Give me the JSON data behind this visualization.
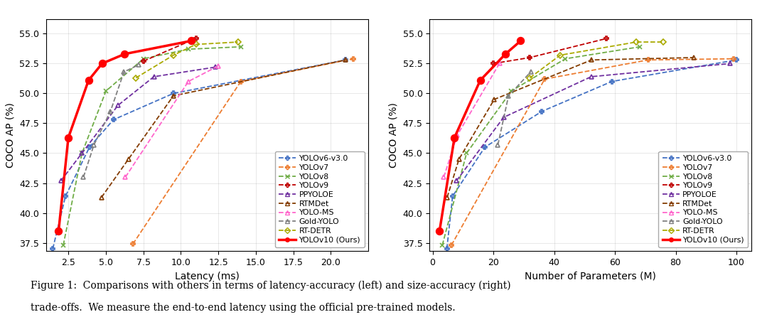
{
  "left_plot": {
    "xlabel": "Latency (ms)",
    "ylabel": "COCO AP (%)",
    "xlim": [
      1.0,
      22.5
    ],
    "ylim": [
      36.8,
      56.2
    ],
    "xticks": [
      2.5,
      5.0,
      7.5,
      10.0,
      12.5,
      15.0,
      17.5,
      20.0
    ],
    "yticks": [
      37.5,
      40.0,
      42.5,
      45.0,
      47.5,
      50.0,
      52.5,
      55.0
    ]
  },
  "right_plot": {
    "xlabel": "Number of Parameters (M)",
    "ylabel": "COCO AP (%)",
    "xlim": [
      -1.0,
      105.0
    ],
    "ylim": [
      36.8,
      56.2
    ],
    "xticks": [
      0,
      20,
      40,
      60,
      80,
      100
    ],
    "yticks": [
      37.5,
      40.0,
      42.5,
      45.0,
      47.5,
      50.0,
      52.5,
      55.0
    ]
  },
  "series": {
    "YOLOv6-v3.0": {
      "color": "#4472C4",
      "linestyle": "--",
      "marker": "P",
      "markersize": 5,
      "linewidth": 1.3,
      "left": {
        "x": [
          1.45,
          2.3,
          3.9,
          5.5,
          9.5,
          21.0
        ],
        "y": [
          37.0,
          41.4,
          45.5,
          47.8,
          50.0,
          52.8
        ]
      },
      "right": {
        "x": [
          4.7,
          6.6,
          17.2,
          36.0,
          59.0,
          100.0
        ],
        "y": [
          37.0,
          41.4,
          45.5,
          48.5,
          51.0,
          52.8
        ]
      }
    },
    "YOLOv7": {
      "color": "#ED7D31",
      "linestyle": "--",
      "marker": "P",
      "markersize": 5,
      "linewidth": 1.3,
      "left": {
        "x": [
          6.8,
          14.0,
          21.5
        ],
        "y": [
          37.4,
          51.0,
          52.9
        ]
      },
      "right": {
        "x": [
          6.2,
          36.9,
          70.9,
          99.0
        ],
        "y": [
          37.3,
          51.2,
          52.8,
          52.9
        ]
      }
    },
    "YOLOv8": {
      "color": "#70AD47",
      "linestyle": "--",
      "marker": "x",
      "markersize": 5,
      "linewidth": 1.3,
      "left": {
        "x": [
          2.15,
          3.4,
          5.0,
          7.5,
          10.5,
          14.0
        ],
        "y": [
          37.3,
          45.0,
          50.2,
          52.9,
          53.7,
          53.9
        ]
      },
      "right": {
        "x": [
          3.2,
          11.2,
          25.9,
          43.7,
          68.2
        ],
        "y": [
          37.3,
          45.0,
          50.2,
          52.9,
          53.9
        ]
      }
    },
    "YOLOv9": {
      "color": "#C00000",
      "linestyle": "--",
      "marker": "P",
      "markersize": 5,
      "linewidth": 1.3,
      "left": {
        "x": [
          7.5,
          11.0
        ],
        "y": [
          52.7,
          54.6
        ]
      },
      "right": {
        "x": [
          20.0,
          32.0,
          57.3
        ],
        "y": [
          52.5,
          53.0,
          54.6
        ]
      }
    },
    "PPYOLOE": {
      "color": "#7030A0",
      "linestyle": "--",
      "marker": "^",
      "markersize": 5,
      "linewidth": 1.3,
      "left": {
        "x": [
          2.0,
          3.4,
          5.8,
          8.2,
          12.3
        ],
        "y": [
          42.7,
          45.0,
          49.0,
          51.4,
          52.2
        ]
      },
      "right": {
        "x": [
          7.9,
          23.4,
          52.2,
          98.0
        ],
        "y": [
          42.7,
          48.0,
          51.4,
          52.5
        ]
      }
    },
    "RTMDet": {
      "color": "#843C00",
      "linestyle": "--",
      "marker": "^",
      "markersize": 5,
      "linewidth": 1.3,
      "left": {
        "x": [
          4.7,
          6.5,
          9.5,
          21.0
        ],
        "y": [
          41.3,
          44.5,
          49.8,
          52.8
        ]
      },
      "right": {
        "x": [
          4.8,
          8.7,
          20.3,
          52.3,
          86.0
        ],
        "y": [
          41.3,
          44.5,
          49.5,
          52.8,
          53.0
        ]
      }
    },
    "YOLO-MS": {
      "color": "#FF66CC",
      "linestyle": "--",
      "marker": "^",
      "markersize": 5,
      "linewidth": 1.3,
      "left": {
        "x": [
          6.3,
          10.5,
          12.5
        ],
        "y": [
          43.0,
          51.0,
          52.3
        ]
      },
      "right": {
        "x": [
          3.7,
          8.1,
          22.0
        ],
        "y": [
          43.0,
          46.5,
          52.5
        ]
      }
    },
    "Gold-YOLO": {
      "color": "#808080",
      "linestyle": "--",
      "marker": "^",
      "markersize": 5,
      "linewidth": 1.3,
      "left": {
        "x": [
          3.5,
          4.2,
          5.3,
          6.2,
          7.2
        ],
        "y": [
          43.0,
          45.7,
          48.5,
          51.8,
          52.4
        ]
      },
      "right": {
        "x": [
          21.5,
          25.0,
          32.3
        ],
        "y": [
          45.7,
          49.8,
          51.8
        ]
      }
    },
    "RT-DETR": {
      "color": "#AAAA00",
      "linestyle": "--",
      "marker": "D",
      "markersize": 4,
      "linewidth": 1.3,
      "left": {
        "x": [
          7.0,
          9.5,
          11.0,
          13.8
        ],
        "y": [
          51.3,
          53.2,
          54.1,
          54.3
        ]
      },
      "right": {
        "x": [
          32.0,
          42.0,
          67.0,
          76.0
        ],
        "y": [
          51.3,
          53.2,
          54.3,
          54.3
        ]
      }
    },
    "YOLOv10 (Ours)": {
      "color": "#FF0000",
      "linestyle": "-",
      "marker": "o",
      "markersize": 7,
      "linewidth": 2.5,
      "left": {
        "x": [
          1.84,
          2.49,
          3.84,
          4.74,
          6.25,
          10.7
        ],
        "y": [
          38.5,
          46.3,
          51.1,
          52.5,
          53.3,
          54.4
        ]
      },
      "right": {
        "x": [
          2.3,
          7.2,
          15.7,
          24.0,
          29.0
        ],
        "y": [
          38.5,
          46.3,
          51.1,
          53.3,
          54.4
        ]
      }
    }
  },
  "caption_line1": "Figure 1:  Comparisons with others in terms of latency-accuracy (left) and size-accuracy (right)",
  "caption_line2": "trade-offs.  We measure the end-to-end latency using the official pre-trained models."
}
